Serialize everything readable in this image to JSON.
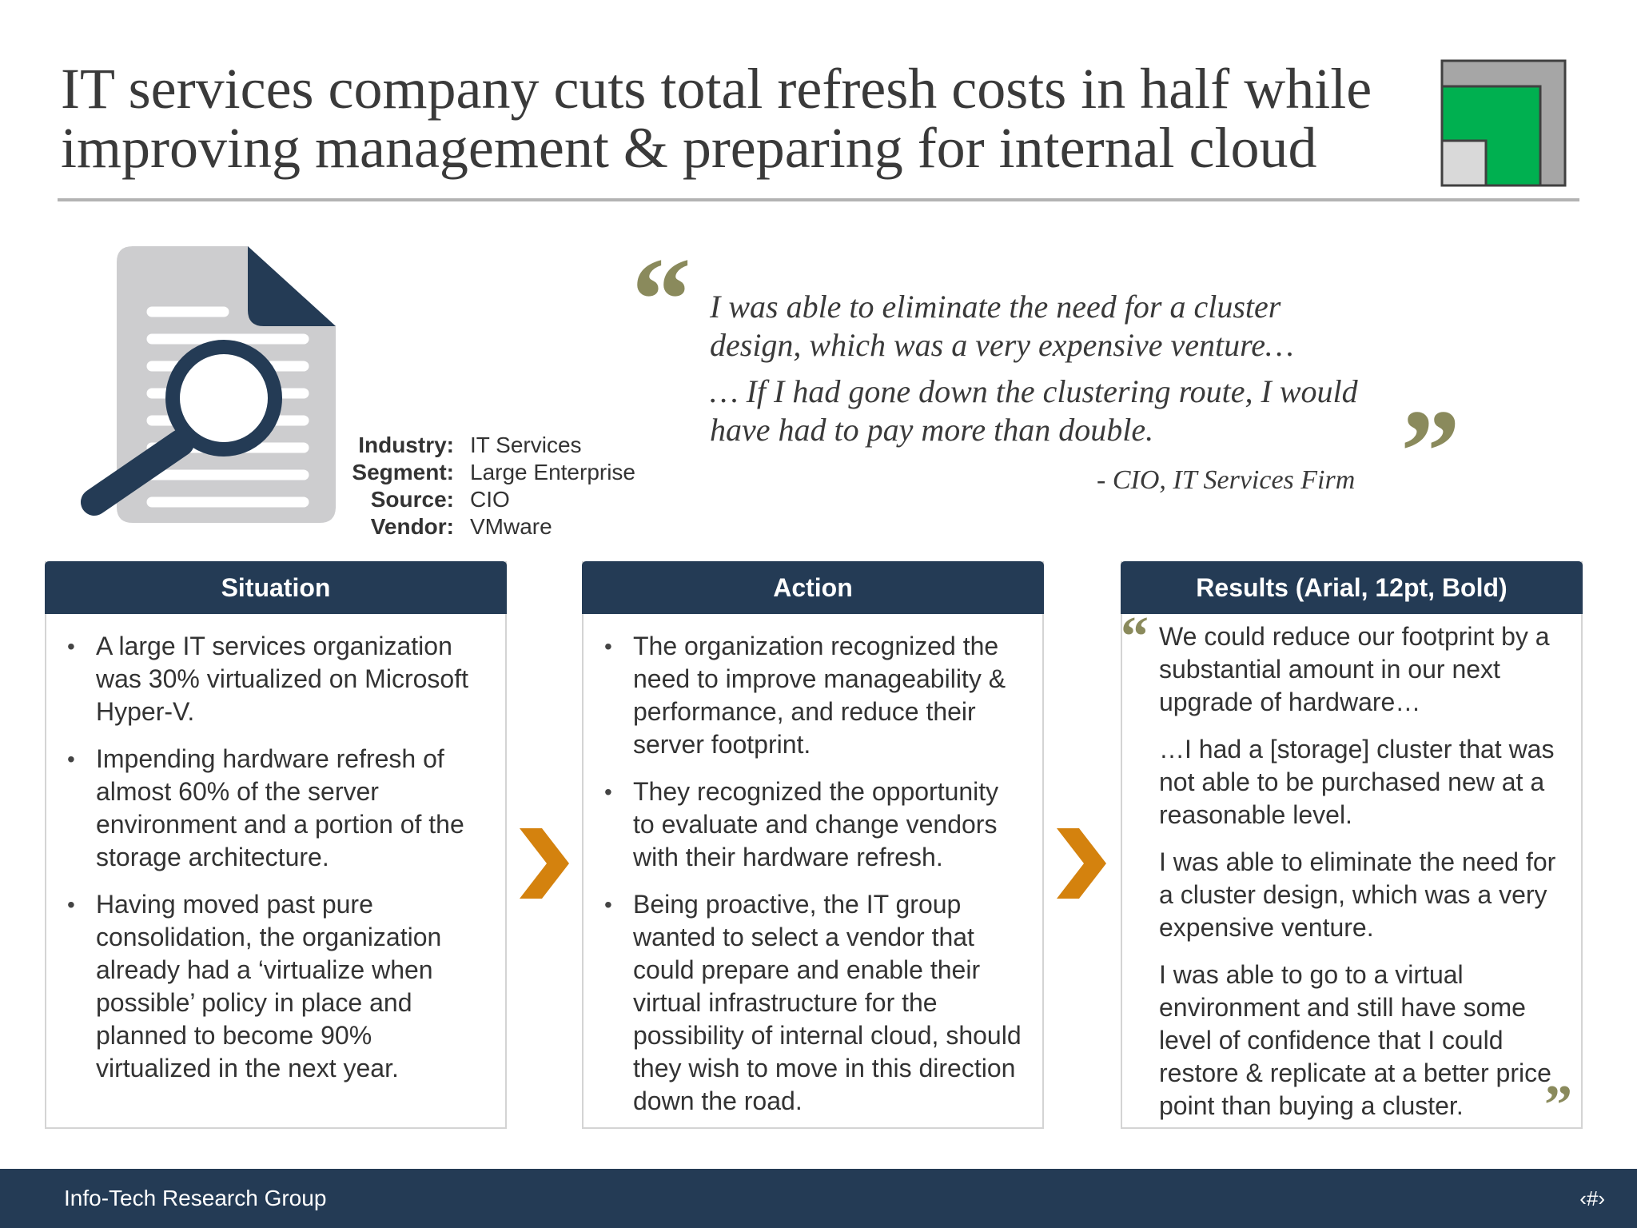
{
  "title": {
    "line1": "IT services company cuts total refresh costs in half while",
    "line2": "improving management & preparing for internal cloud"
  },
  "profile": [
    {
      "label": "Industry:",
      "value": "IT Services"
    },
    {
      "label": "Segment:",
      "value": "Large Enterprise"
    },
    {
      "label": "Source:",
      "value": "CIO"
    },
    {
      "label": "Vendor:",
      "value": "VMware"
    }
  ],
  "quote": {
    "lines": [
      "I was able to eliminate the need for a cluster",
      "design, which was a very expensive venture…",
      "… If I had gone down the clustering route, I would",
      "have had to pay more than double."
    ],
    "attribution": "- CIO, IT Services Firm",
    "open_mark": "“",
    "close_mark": "”"
  },
  "situation": {
    "header": "Situation",
    "bullets": [
      "A  large IT services organization was 30% virtualized on Microsoft Hyper-V.",
      "Impending hardware refresh of almost 60% of the server environment and a portion of the storage architecture.",
      "Having moved past pure consolidation, the organization already had a ‘virtualize when possible’ policy in place and planned to become 90% virtualized in the next year."
    ]
  },
  "action": {
    "header": "Action",
    "bullets": [
      "The organization recognized the need to improve manageability & performance, and reduce their server footprint.",
      "They recognized the opportunity to evaluate and change vendors with their hardware refresh.",
      "Being proactive, the IT group wanted to select a vendor that could prepare and enable their virtual infrastructure for the possibility of internal cloud, should they wish to move in this direction down the road."
    ]
  },
  "results": {
    "header": "Results (Arial, 12pt, Bold)",
    "paragraphs": [
      "We could reduce our footprint by a substantial amount in our next upgrade of hardware…",
      "…I had a [storage] cluster that was not able to be purchased new at a reasonable level.",
      "I was able to eliminate the need for a cluster design, which was a very expensive venture.",
      "I was able to go to a virtual environment and still have some level of confidence that I could restore & replicate at a better price point than buying a cluster."
    ],
    "open_mark": "“",
    "close_mark": "”"
  },
  "footer": {
    "org": "Info-Tech Research Group",
    "page": "‹#›"
  },
  "colors": {
    "navy": "#243b55",
    "accent_green": "#00b050",
    "chevron_orange": "#d4820e",
    "quote_olive": "#8a8a5c"
  },
  "icons": [
    "document-search-icon",
    "logo-squares-icon",
    "chevron-right-icon"
  ]
}
